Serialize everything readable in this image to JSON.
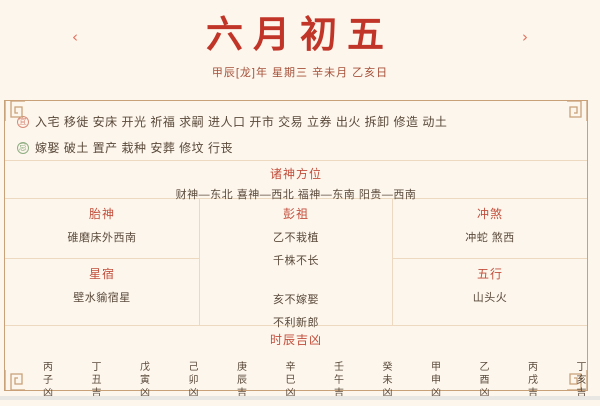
{
  "colors": {
    "background": "#fdf6ec",
    "title_red": "#c13528",
    "section_red": "#c24f3d",
    "body_text": "#5a4a3b",
    "frame_border": "#c9a178",
    "table_border": "#ecd9c0",
    "yi_badge": "#d98a78",
    "ji_badge": "#8fae82"
  },
  "header": {
    "title": "六月初五",
    "date_line": "甲辰[龙]年 星期三 辛未月 乙亥日",
    "prev_arrow": "‹",
    "next_arrow": "›"
  },
  "suitable": {
    "badge": "宜",
    "items": "入宅 移徙 安床 开光 祈福 求嗣 进人口 开市 交易 立券 出火 拆卸 修造 动土"
  },
  "avoid": {
    "badge": "忌",
    "items": "嫁娶 破土 置产 栽种 安葬 修坟 行丧"
  },
  "sections": {
    "gods": {
      "title": "诸神方位",
      "value": "财神—东北 喜神—西北 福神—东南 阳贵—西南"
    },
    "taishen": {
      "title": "胎神",
      "value": "碓磨床外西南"
    },
    "pengzu": {
      "title": "彭祖",
      "lines": [
        "乙不栽植",
        "千株不长",
        "亥不嫁娶",
        "不利新郎"
      ]
    },
    "chongsha": {
      "title": "冲煞",
      "value": "冲蛇 煞西"
    },
    "xingxiu": {
      "title": "星宿",
      "value": "壁水貐宿星"
    },
    "wuxing": {
      "title": "五行",
      "value": "山头火"
    },
    "shichen": {
      "title": "时辰吉凶",
      "hours": [
        "丙子凶",
        "丁丑吉",
        "戊寅凶",
        "己卯凶",
        "庚辰吉",
        "辛巳凶",
        "壬午吉",
        "癸未凶",
        "甲申凶",
        "乙酉凶",
        "丙戌吉",
        "丁亥吉"
      ]
    }
  }
}
